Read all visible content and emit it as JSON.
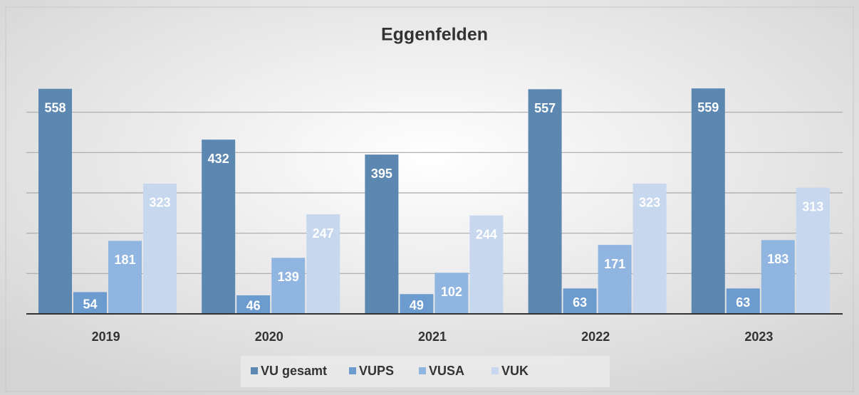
{
  "chart_data": {
    "type": "bar",
    "title": "Eggenfelden",
    "categories": [
      "2019",
      "2020",
      "2021",
      "2022",
      "2023"
    ],
    "series": [
      {
        "name": "VU gesamt",
        "color": "#5b87b0",
        "values": [
          558,
          432,
          395,
          557,
          559
        ]
      },
      {
        "name": "VUPS",
        "color": "#6c9bd0",
        "values": [
          54,
          46,
          49,
          63,
          63
        ]
      },
      {
        "name": "VUSA",
        "color": "#90b5e0",
        "values": [
          181,
          139,
          102,
          171,
          183
        ]
      },
      {
        "name": "VUK",
        "color": "#c6d7ee",
        "values": [
          323,
          247,
          244,
          323,
          313
        ]
      }
    ],
    "ylim": [
      0,
      600
    ],
    "yticks": [
      0,
      100,
      200,
      300,
      400,
      500
    ],
    "grid": true,
    "legend": "bottom"
  }
}
